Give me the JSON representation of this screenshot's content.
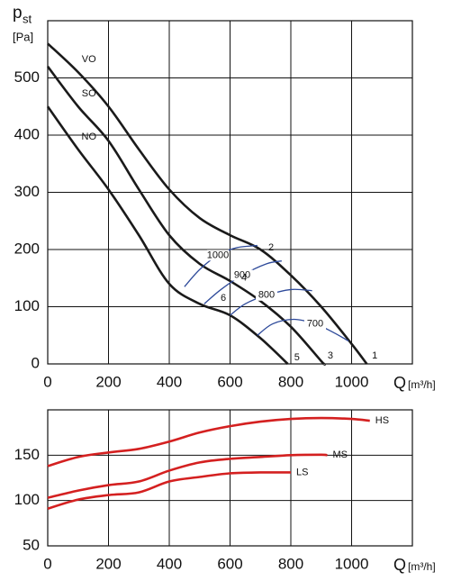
{
  "chart_data": [
    {
      "type": "line",
      "ylabel": "p",
      "ylabel_sub": "st",
      "yunit": "[Pa]",
      "xlabel": "Q",
      "xunit": "[m³/h]",
      "xlim": [
        0,
        1200
      ],
      "ylim": [
        0,
        600
      ],
      "xticks": [
        0,
        200,
        400,
        600,
        800,
        1000
      ],
      "yticks": [
        0,
        100,
        200,
        300,
        400,
        500
      ],
      "grid": true,
      "series": [
        {
          "name": "VO",
          "color": "#1a1a1a",
          "x": [
            0,
            100,
            200,
            300,
            400,
            500,
            600,
            700,
            800,
            900,
            1000,
            1050
          ],
          "values": [
            560,
            510,
            450,
            375,
            305,
            255,
            225,
            200,
            155,
            100,
            35,
            0
          ]
        },
        {
          "name": "SO",
          "color": "#1a1a1a",
          "x": [
            0,
            100,
            200,
            300,
            400,
            500,
            600,
            700,
            800,
            900,
            910
          ],
          "values": [
            520,
            450,
            390,
            305,
            225,
            175,
            145,
            110,
            65,
            5,
            0
          ]
        },
        {
          "name": "NO",
          "color": "#1a1a1a",
          "x": [
            0,
            100,
            200,
            300,
            400,
            500,
            600,
            700,
            790
          ],
          "values": [
            450,
            375,
            305,
            225,
            140,
            105,
            85,
            45,
            0
          ]
        }
      ],
      "iso_lines": [
        {
          "name": "1000",
          "color": "#2e4a9a",
          "x": [
            450,
            500,
            560,
            620,
            690
          ],
          "values": [
            135,
            165,
            190,
            203,
            207
          ]
        },
        {
          "name": "900",
          "color": "#2e4a9a",
          "x": [
            515,
            570,
            640,
            720,
            770
          ],
          "values": [
            105,
            130,
            155,
            175,
            180
          ]
        },
        {
          "name": "800",
          "color": "#2e4a9a",
          "x": [
            600,
            650,
            720,
            800,
            870
          ],
          "values": [
            85,
            105,
            120,
            130,
            128
          ]
        },
        {
          "name": "700",
          "color": "#2e4a9a",
          "x": [
            690,
            740,
            810,
            880,
            940,
            990
          ],
          "values": [
            50,
            70,
            78,
            70,
            55,
            40
          ]
        }
      ],
      "annotations": [
        {
          "text": "1",
          "x": 1076,
          "y": 14
        },
        {
          "text": "2",
          "x": 735,
          "y": 203
        },
        {
          "text": "3",
          "x": 930,
          "y": 14
        },
        {
          "text": "4",
          "x": 646,
          "y": 150
        },
        {
          "text": "5",
          "x": 820,
          "y": 11
        },
        {
          "text": "6",
          "x": 578,
          "y": 115
        }
      ]
    },
    {
      "type": "line",
      "xlabel": "Q",
      "xunit": "[m³/h]",
      "tick_color": "#d42020",
      "xlim": [
        0,
        1200
      ],
      "ylim": [
        50,
        200
      ],
      "xticks": [
        0,
        200,
        400,
        600,
        800,
        1000
      ],
      "yticks": [
        50,
        100,
        150
      ],
      "grid": true,
      "series": [
        {
          "name": "HS",
          "color": "#d42020",
          "x": [
            0,
            100,
            200,
            300,
            400,
            500,
            600,
            700,
            800,
            900,
            1000,
            1060
          ],
          "values": [
            138,
            148,
            153,
            157,
            165,
            175,
            182,
            187,
            190,
            191,
            190,
            188
          ]
        },
        {
          "name": "MS",
          "color": "#d42020",
          "x": [
            0,
            100,
            200,
            300,
            400,
            500,
            600,
            700,
            800,
            900,
            920
          ],
          "values": [
            103,
            111,
            117,
            121,
            133,
            142,
            146,
            148,
            150,
            150.5,
            150
          ]
        },
        {
          "name": "LS",
          "color": "#d42020",
          "x": [
            0,
            100,
            200,
            300,
            400,
            500,
            600,
            700,
            800
          ],
          "values": [
            91,
            101,
            106,
            109,
            121,
            126,
            130,
            131,
            131
          ]
        }
      ]
    }
  ]
}
